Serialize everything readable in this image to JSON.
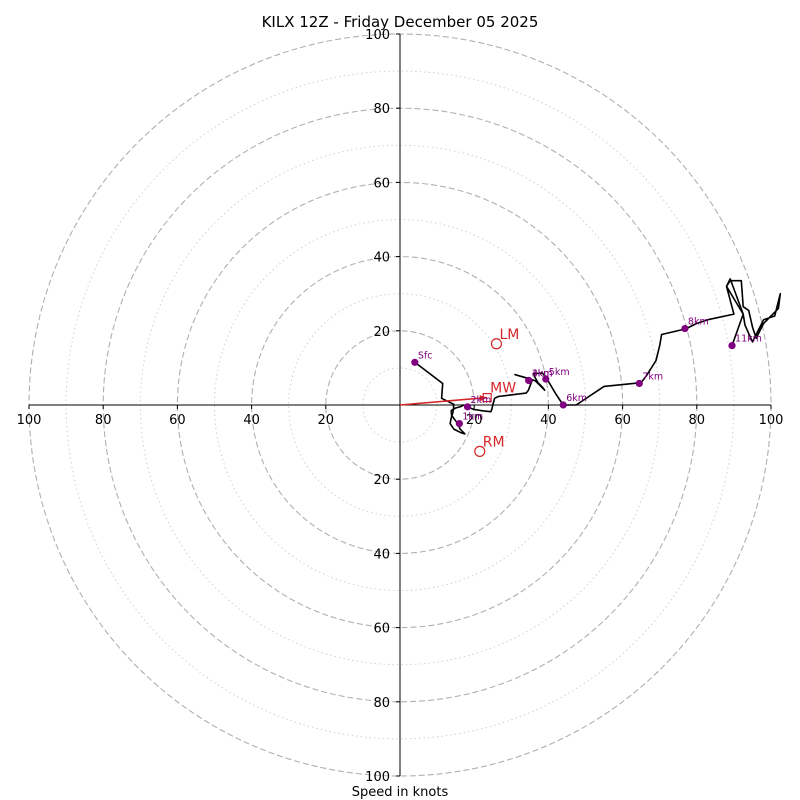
{
  "chart_data": {
    "type": "hodograph",
    "title": "KILX 12Z - Friday December 05 2025",
    "xlabel": "Speed in knots",
    "max_speed": 100,
    "ring_major": [
      20,
      40,
      60,
      80,
      100
    ],
    "ring_minor": [
      10,
      30,
      50,
      70,
      90
    ],
    "x_tick_labels": [
      "100",
      "80",
      "60",
      "40",
      "20",
      "20",
      "40",
      "60",
      "80",
      "100"
    ],
    "y_tick_labels": [
      "100",
      "80",
      "60",
      "40",
      "20",
      "20",
      "40",
      "60",
      "80",
      "100"
    ],
    "trace": [
      [
        4,
        11.5
      ],
      [
        11.5,
        5.8
      ],
      [
        11.3,
        2.8
      ],
      [
        11.2,
        1.8
      ],
      [
        14.5,
        0.2
      ],
      [
        14.3,
        -1.8
      ],
      [
        13.8,
        -3.5
      ],
      [
        13.5,
        -5
      ],
      [
        14.5,
        -6.5
      ],
      [
        16.5,
        -7.5
      ],
      [
        17.5,
        -7.8
      ],
      [
        16.2,
        -6.5
      ],
      [
        15.7,
        -5.2
      ],
      [
        14.8,
        -4
      ],
      [
        13.9,
        -2.8
      ],
      [
        13.8,
        -1.5
      ],
      [
        15,
        -0.8
      ],
      [
        16.5,
        -0.4
      ],
      [
        17,
        0
      ],
      [
        18,
        -0.5
      ],
      [
        20,
        -1.2
      ],
      [
        22.5,
        -1.6
      ],
      [
        24.5,
        -1.8
      ],
      [
        24.8,
        -1
      ],
      [
        25,
        0
      ],
      [
        25.5,
        1.8
      ],
      [
        26.5,
        2.3
      ],
      [
        34,
        3.2
      ],
      [
        34.6,
        4
      ],
      [
        35.7,
        6.8
      ],
      [
        31,
        8.2
      ],
      [
        34.5,
        7.2
      ],
      [
        36.5,
        6.5
      ],
      [
        38,
        5
      ],
      [
        39,
        4
      ],
      [
        38.5,
        4.7
      ],
      [
        37.2,
        6
      ],
      [
        36.3,
        7.6
      ],
      [
        36,
        8.5
      ],
      [
        38.4,
        8.6
      ],
      [
        39.5,
        7.2
      ],
      [
        40.5,
        5.5
      ],
      [
        42,
        3
      ],
      [
        44,
        0
      ],
      [
        47.5,
        0
      ],
      [
        55,
        5
      ],
      [
        65,
        6
      ],
      [
        66.5,
        8
      ],
      [
        69,
        12
      ],
      [
        70,
        16
      ],
      [
        70.5,
        19
      ],
      [
        77,
        20.5
      ],
      [
        80,
        22
      ],
      [
        83,
        23
      ],
      [
        90,
        24.5
      ],
      [
        88,
        32
      ],
      [
        89,
        33.5
      ],
      [
        92,
        33.5
      ],
      [
        92.5,
        26.5
      ],
      [
        94,
        25.5
      ],
      [
        95,
        21
      ],
      [
        96,
        18
      ],
      [
        98,
        22
      ],
      [
        100,
        24
      ],
      [
        102,
        26
      ],
      [
        102.5,
        30
      ],
      [
        101,
        24
      ],
      [
        98,
        23
      ],
      [
        95,
        17
      ],
      [
        93,
        21.5
      ],
      [
        92.5,
        24.5
      ],
      [
        89,
        34
      ],
      [
        88,
        32
      ],
      [
        92.5,
        24.5
      ],
      [
        89.5,
        16
      ]
    ],
    "height_markers": [
      {
        "label": "Sfc",
        "u": 4,
        "v": 11.5
      },
      {
        "label": "1km",
        "u": 16,
        "v": -5
      },
      {
        "label": "2km",
        "u": 18.2,
        "v": -0.5
      },
      {
        "label": "3km",
        "u": 34.7,
        "v": 6.6
      },
      {
        "label": "4km",
        "u": 34.7,
        "v": 6.6
      },
      {
        "label": "5km",
        "u": 39.3,
        "v": 7
      },
      {
        "label": "6km",
        "u": 44,
        "v": 0
      },
      {
        "label": "7km",
        "u": 64.5,
        "v": 5.8
      },
      {
        "label": "8km",
        "u": 76.8,
        "v": 20.6
      },
      {
        "label": "11km",
        "u": 89.5,
        "v": 16
      }
    ],
    "motion_markers": [
      {
        "label": "LM",
        "u": 26,
        "v": 16.5
      },
      {
        "label": "RM",
        "u": 21.5,
        "v": -12.5
      },
      {
        "label": "MW",
        "u": 23.5,
        "v": 2
      }
    ],
    "mean_wind_vector": {
      "u": 23.5,
      "v": 2
    },
    "colors": {
      "trace": "#000000",
      "marker": "#800080",
      "marker_label": "#800080",
      "motion": "#d62728",
      "grid": "#b0b0b0",
      "axis": "#000000"
    }
  }
}
